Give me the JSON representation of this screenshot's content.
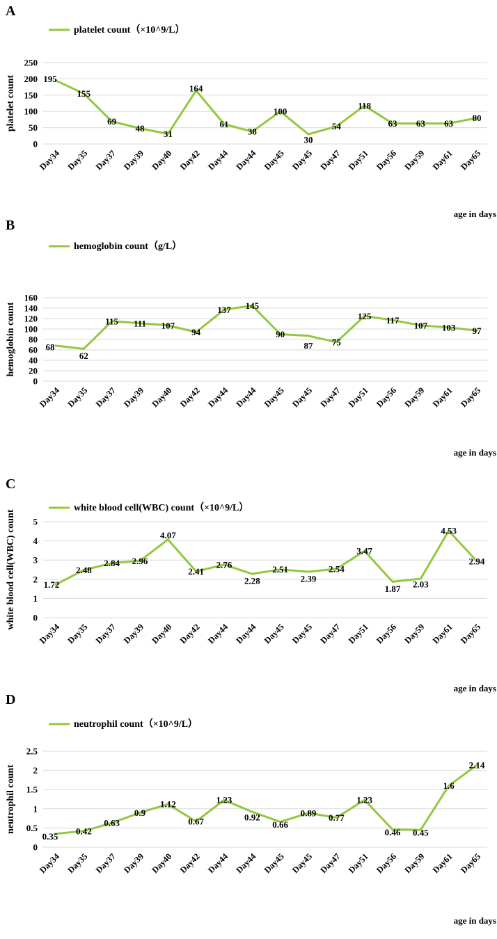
{
  "line_color": "#92C83E",
  "grid_color": "#D9D9D9",
  "chart_data": [
    {
      "panel": "A",
      "type": "line",
      "legend": "platelet count（×10^9/L）",
      "ylabel": "platelet count",
      "xlabel": "age in days",
      "ylim": [
        0,
        250
      ],
      "yticks": [
        0,
        50,
        100,
        150,
        200,
        250
      ],
      "ytick_labels": [
        "0",
        "50",
        "100",
        "150",
        "200",
        "250"
      ],
      "categories": [
        "Day34",
        "Day35",
        "Day37",
        "Day39",
        "Day40",
        "Day42",
        "Day44",
        "Day44",
        "Day45",
        "Day45",
        "Day47",
        "Day51",
        "Day56",
        "Day59",
        "Day61",
        "Day65"
      ],
      "values": [
        195,
        155,
        69,
        48,
        31,
        164,
        61,
        38,
        100,
        30,
        54,
        118,
        63,
        63,
        63,
        80
      ],
      "labels": [
        "195",
        "155",
        "69",
        "48",
        "31",
        "164",
        "61",
        "38",
        "100",
        "30",
        "54",
        "118",
        "63",
        "63",
        "63",
        "80"
      ]
    },
    {
      "panel": "B",
      "type": "line",
      "legend": "hemoglobin count（g/L）",
      "ylabel": "hemoglobin count",
      "xlabel": "age in days",
      "ylim": [
        0,
        160
      ],
      "yticks": [
        0,
        20,
        40,
        60,
        80,
        100,
        120,
        140,
        160
      ],
      "ytick_labels": [
        "0",
        "20",
        "40",
        "60",
        "80",
        "100",
        "120",
        "140",
        "160"
      ],
      "categories": [
        "Day34",
        "Day35",
        "Day37",
        "Day39",
        "Day40",
        "Day42",
        "Day44",
        "Day44",
        "Day45",
        "Day45",
        "Day47",
        "Day51",
        "Day56",
        "Day59",
        "Day61",
        "Day65"
      ],
      "values": [
        68,
        62,
        115,
        111,
        107,
        94,
        137,
        145,
        90,
        87,
        75,
        125,
        117,
        107,
        103,
        97
      ],
      "labels": [
        "68",
        "62",
        "115",
        "111",
        "107",
        "94",
        "137",
        "145",
        "90",
        "87",
        "75",
        "125",
        "117",
        "107",
        "103",
        "97"
      ]
    },
    {
      "panel": "C",
      "type": "line",
      "legend": "white blood cell(WBC) count（×10^9/L）",
      "ylabel": "white blood cell(WBC) count",
      "xlabel": "age in days",
      "ylim": [
        0,
        5
      ],
      "yticks": [
        0,
        1,
        2,
        3,
        4,
        5
      ],
      "ytick_labels": [
        "0",
        "1",
        "2",
        "3",
        "4",
        "5"
      ],
      "categories": [
        "Day34",
        "Day35",
        "Day37",
        "Day39",
        "Day40",
        "Day42",
        "Day44",
        "Day44",
        "Day45",
        "Day45",
        "Day47",
        "Day51",
        "Day56",
        "Day59",
        "Day61",
        "Day65"
      ],
      "values": [
        1.72,
        2.48,
        2.84,
        2.96,
        4.07,
        2.41,
        2.76,
        2.28,
        2.51,
        2.39,
        2.54,
        3.47,
        1.87,
        2.03,
        4.53,
        2.94
      ],
      "labels": [
        "1.72",
        "2.48",
        "2.84",
        "2.96",
        "4.07",
        "2.41",
        "2.76",
        "2.28",
        "2.51",
        "2.39",
        "2.54",
        "3.47",
        "1.87",
        "2.03",
        "4.53",
        "2.94"
      ]
    },
    {
      "panel": "D",
      "type": "line",
      "legend": "neutrophil count（×10^9/L）",
      "ylabel": "neutrophil count",
      "xlabel": "age in days",
      "ylim": [
        0,
        2.5
      ],
      "yticks": [
        0,
        0.5,
        1,
        1.5,
        2,
        2.5
      ],
      "ytick_labels": [
        "0",
        "0.5",
        "1",
        "1.5",
        "2",
        "2.5"
      ],
      "categories": [
        "Day34",
        "Day35",
        "Day37",
        "Day39",
        "Day40",
        "Day42",
        "Day44",
        "Day44",
        "Day45",
        "Day45",
        "Day47",
        "Day51",
        "Day56",
        "Day59",
        "Day61",
        "Day65"
      ],
      "values": [
        0.35,
        0.42,
        0.63,
        0.9,
        1.12,
        0.67,
        1.23,
        0.92,
        0.66,
        0.89,
        0.77,
        1.23,
        0.46,
        0.45,
        1.6,
        2.14
      ],
      "labels": [
        "0.35",
        "0.42",
        "0.63",
        "0.9",
        "1.12",
        "0.67",
        "1.23",
        "0.92",
        "0.66",
        "0.89",
        "0.77",
        "1.23",
        "0.46",
        "0.45",
        "1.6",
        "2.14"
      ]
    }
  ]
}
